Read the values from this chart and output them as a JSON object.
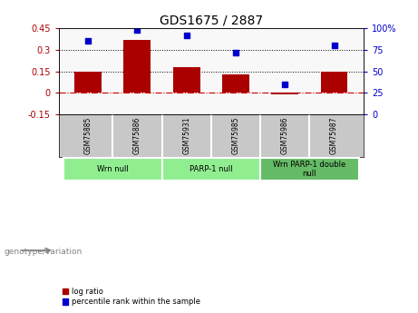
{
  "title": "GDS1675 / 2887",
  "samples": [
    "GSM75885",
    "GSM75886",
    "GSM75931",
    "GSM75985",
    "GSM75986",
    "GSM75987"
  ],
  "log_ratio": [
    0.15,
    0.37,
    0.18,
    0.13,
    -0.01,
    0.15
  ],
  "percentile_rank": [
    85,
    98,
    92,
    72,
    35,
    80
  ],
  "ylim_left": [
    -0.15,
    0.45
  ],
  "ylim_right": [
    0,
    100
  ],
  "yticks_left": [
    -0.15,
    0,
    0.15,
    0.3,
    0.45
  ],
  "yticks_right": [
    0,
    25,
    50,
    75,
    100
  ],
  "bar_color": "#AA0000",
  "dot_color": "#0000CC",
  "hline_y": [
    0.15,
    0.3
  ],
  "hline_color": "black",
  "zero_line_color": "#CC0000",
  "groups": [
    {
      "label": "Wrn null",
      "start": 0,
      "end": 2,
      "color": "#90EE90"
    },
    {
      "label": "PARP-1 null",
      "start": 2,
      "end": 4,
      "color": "#90EE90"
    },
    {
      "label": "Wrn PARP-1 double\nnull",
      "start": 4,
      "end": 6,
      "color": "#66BB66"
    }
  ],
  "legend_items": [
    {
      "label": "log ratio",
      "color": "#AA0000"
    },
    {
      "label": "percentile rank within the sample",
      "color": "#0000CC"
    }
  ],
  "genotype_label": "genotype/variation",
  "background_color": "#FFFFFF",
  "sample_bg_color": "#C8C8C8",
  "sample_border_color": "#FFFFFF"
}
